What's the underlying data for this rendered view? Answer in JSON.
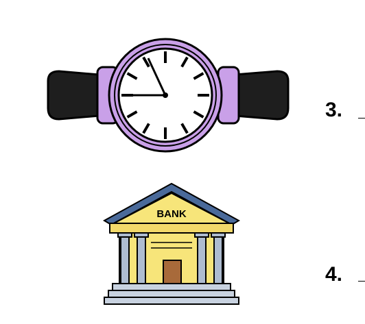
{
  "items": [
    {
      "number": "3.",
      "icon": "wristwatch-icon",
      "answer": ""
    },
    {
      "number": "4.",
      "icon": "bank-building-icon",
      "answer": ""
    }
  ],
  "watch": {
    "case_color": "#c9a0e8",
    "strap_color": "#1e1e1e"
  },
  "bank": {
    "sign_text": "BANK",
    "wall_color": "#f7e57a",
    "roof_color": "#4a6a9a",
    "door_color": "#a86a3a"
  }
}
